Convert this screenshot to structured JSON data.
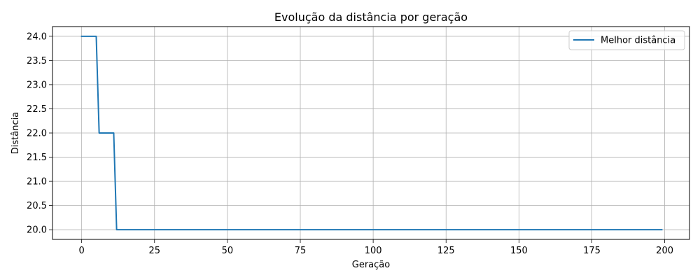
{
  "chart_data": {
    "type": "line",
    "title": "Evolução da distância por geração",
    "xlabel": "Geração",
    "ylabel": "Distância",
    "xlim": [
      -10,
      208.5
    ],
    "ylim": [
      19.8,
      24.2
    ],
    "xticks": [
      0,
      25,
      50,
      75,
      100,
      125,
      150,
      175,
      200
    ],
    "yticks": [
      20.0,
      20.5,
      21.0,
      21.5,
      22.0,
      22.5,
      23.0,
      23.5,
      24.0
    ],
    "xtick_labels": [
      "0",
      "25",
      "50",
      "75",
      "100",
      "125",
      "150",
      "175",
      "200"
    ],
    "ytick_labels": [
      "20.0",
      "20.5",
      "21.0",
      "21.5",
      "22.0",
      "22.5",
      "23.0",
      "23.5",
      "24.0"
    ],
    "grid": true,
    "legend_position": "top-right",
    "series": [
      {
        "name": "Melhor distância",
        "color": "#1f77b4",
        "x": [
          0,
          5,
          6,
          11,
          12,
          199
        ],
        "y": [
          24.0,
          24.0,
          22.0,
          22.0,
          20.0,
          20.0
        ]
      }
    ]
  }
}
